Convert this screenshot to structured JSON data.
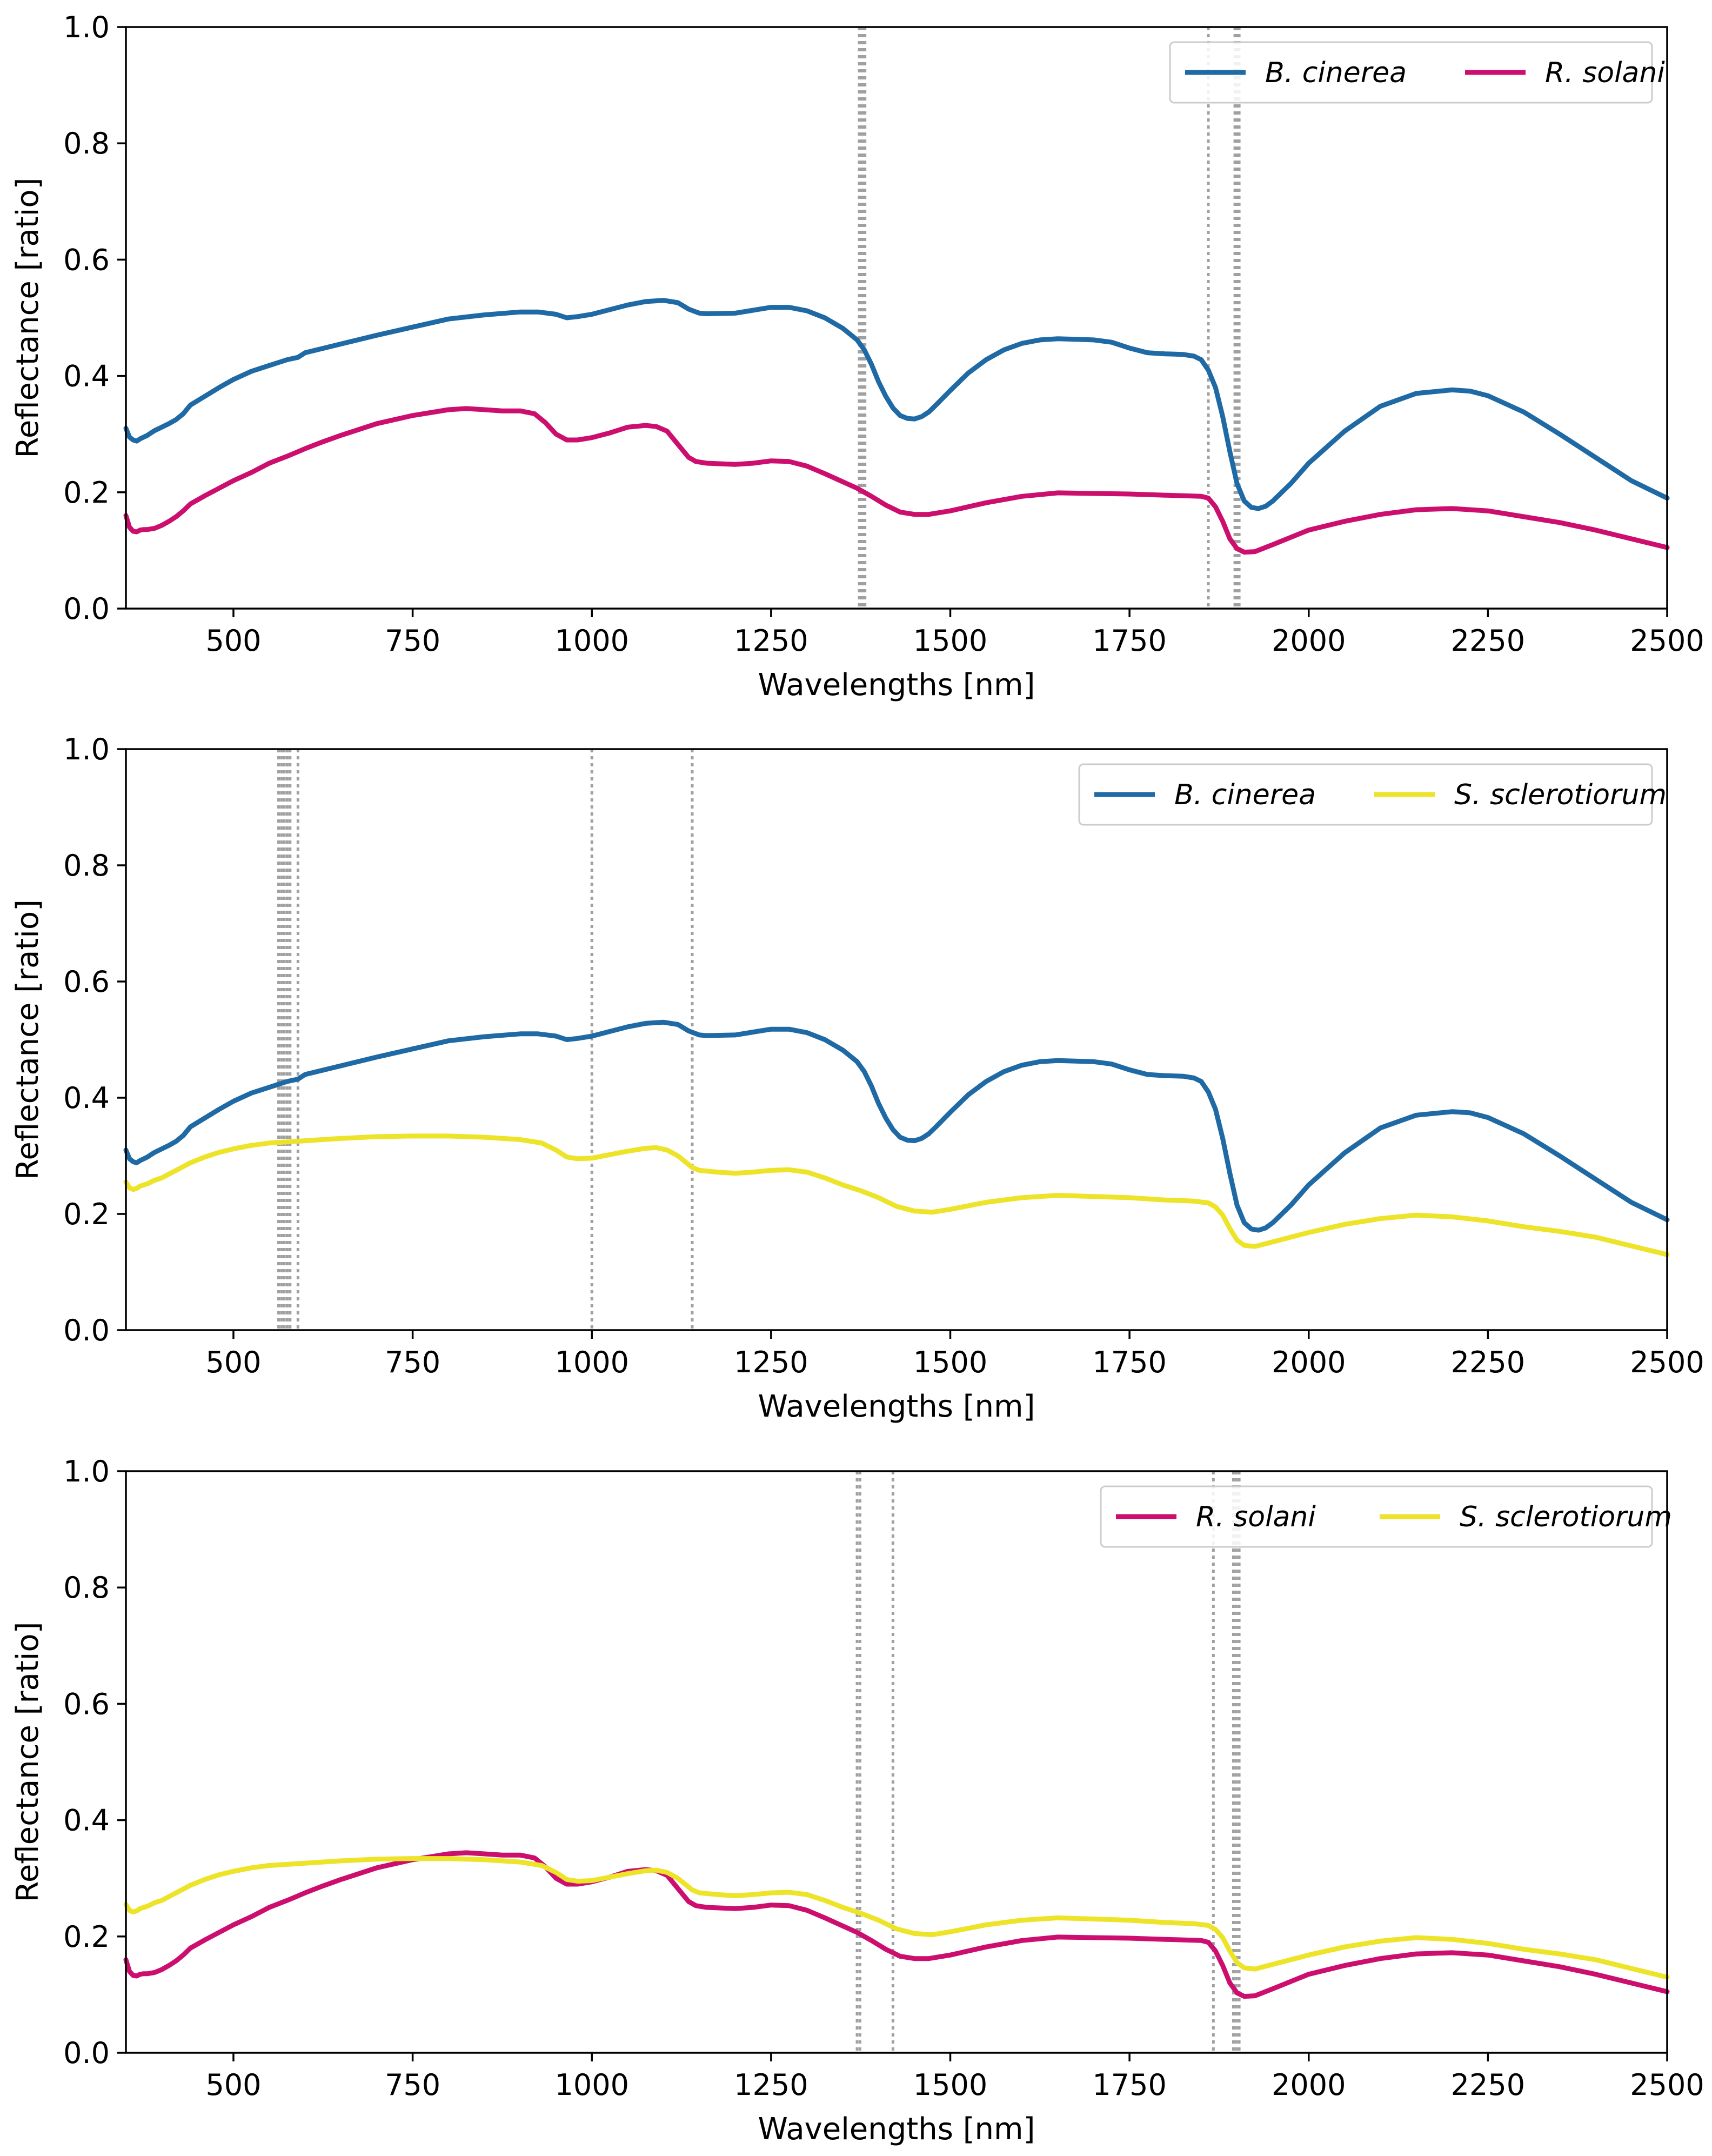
{
  "colors": {
    "B_cinerea": "#1f6aa5",
    "R_solani": "#cc0f6e",
    "S_sclerotiorum": "#ede328",
    "vline": "#a0a0a0"
  },
  "chart_data": [
    {
      "type": "line",
      "id": "panel1",
      "xlabel": "Wavelengths [nm]",
      "ylabel": "Reflectance [ratio]",
      "xlim": [
        350,
        2500
      ],
      "ylim": [
        0,
        1.0
      ],
      "xticks": [
        500,
        750,
        1000,
        1250,
        1500,
        1750,
        2000,
        2250,
        2500
      ],
      "yticks": [
        0.0,
        0.2,
        0.4,
        0.6,
        0.8,
        1.0
      ],
      "xtick_labels": [
        "500",
        "750",
        "1000",
        "1250",
        "1500",
        "1750",
        "2000",
        "2250",
        "2500"
      ],
      "ytick_labels": [
        "0.0",
        "0.2",
        "0.4",
        "0.6",
        "0.8",
        "1.0"
      ],
      "vlines": [
        1373,
        1375,
        1377,
        1379,
        1381,
        1860,
        1897,
        1899,
        1901,
        1903
      ],
      "legend_position": "top-right",
      "series": [
        {
          "key": "B_cinerea",
          "name": "B. cinerea"
        },
        {
          "key": "R_solani",
          "name": "R. solani"
        }
      ]
    },
    {
      "type": "line",
      "id": "panel2",
      "xlabel": "Wavelengths [nm]",
      "ylabel": "Reflectance [ratio]",
      "xlim": [
        350,
        2500
      ],
      "ylim": [
        0,
        1.0
      ],
      "xticks": [
        500,
        750,
        1000,
        1250,
        1500,
        1750,
        2000,
        2250,
        2500
      ],
      "yticks": [
        0.0,
        0.2,
        0.4,
        0.6,
        0.8,
        1.0
      ],
      "xtick_labels": [
        "500",
        "750",
        "1000",
        "1250",
        "1500",
        "1750",
        "2000",
        "2250",
        "2500"
      ],
      "ytick_labels": [
        "0.0",
        "0.2",
        "0.4",
        "0.6",
        "0.8",
        "1.0"
      ],
      "vlines": [
        563,
        567,
        571,
        575,
        579,
        590,
        1000,
        1140
      ],
      "legend_position": "top-right",
      "series": [
        {
          "key": "B_cinerea",
          "name": "B. cinerea"
        },
        {
          "key": "S_sclerotiorum",
          "name": "S. sclerotiorum"
        }
      ]
    },
    {
      "type": "line",
      "id": "panel3",
      "xlabel": "Wavelengths [nm]",
      "ylabel": "Reflectance [ratio]",
      "xlim": [
        350,
        2500
      ],
      "ylim": [
        0,
        1.0
      ],
      "xticks": [
        500,
        750,
        1000,
        1250,
        1500,
        1750,
        2000,
        2250,
        2500
      ],
      "yticks": [
        0.0,
        0.2,
        0.4,
        0.6,
        0.8,
        1.0
      ],
      "xtick_labels": [
        "500",
        "750",
        "1000",
        "1250",
        "1500",
        "1750",
        "2000",
        "2250",
        "2500"
      ],
      "ytick_labels": [
        "0.0",
        "0.2",
        "0.4",
        "0.6",
        "0.8",
        "1.0"
      ],
      "vlines": [
        1370,
        1374,
        1420,
        1867,
        1895,
        1899,
        1903
      ],
      "legend_position": "top-right",
      "series": [
        {
          "key": "R_solani",
          "name": "R. solani"
        },
        {
          "key": "S_sclerotiorum",
          "name": "S. sclerotiorum"
        }
      ]
    }
  ],
  "spectra": {
    "B_cinerea": {
      "name": "B. cinerea",
      "x": [
        350,
        355,
        360,
        365,
        370,
        375,
        380,
        385,
        390,
        400,
        410,
        420,
        430,
        440,
        460,
        480,
        500,
        525,
        550,
        575,
        590,
        600,
        650,
        700,
        750,
        800,
        850,
        900,
        925,
        950,
        965,
        980,
        1000,
        1025,
        1050,
        1075,
        1100,
        1120,
        1135,
        1150,
        1160,
        1200,
        1225,
        1250,
        1275,
        1300,
        1325,
        1350,
        1370,
        1380,
        1390,
        1400,
        1410,
        1420,
        1430,
        1440,
        1450,
        1460,
        1470,
        1480,
        1500,
        1525,
        1550,
        1575,
        1600,
        1625,
        1650,
        1675,
        1700,
        1725,
        1750,
        1775,
        1800,
        1825,
        1840,
        1850,
        1860,
        1870,
        1880,
        1890,
        1900,
        1910,
        1920,
        1930,
        1940,
        1950,
        1975,
        2000,
        2050,
        2100,
        2150,
        2200,
        2225,
        2250,
        2300,
        2350,
        2400,
        2450,
        2500
      ],
      "y": [
        0.31,
        0.295,
        0.29,
        0.288,
        0.292,
        0.295,
        0.298,
        0.302,
        0.306,
        0.312,
        0.318,
        0.325,
        0.335,
        0.35,
        0.365,
        0.38,
        0.394,
        0.408,
        0.418,
        0.428,
        0.432,
        0.44,
        0.455,
        0.47,
        0.484,
        0.498,
        0.505,
        0.51,
        0.51,
        0.506,
        0.5,
        0.502,
        0.506,
        0.514,
        0.522,
        0.528,
        0.53,
        0.526,
        0.515,
        0.508,
        0.507,
        0.508,
        0.513,
        0.518,
        0.518,
        0.512,
        0.5,
        0.482,
        0.462,
        0.445,
        0.42,
        0.39,
        0.365,
        0.345,
        0.332,
        0.327,
        0.326,
        0.33,
        0.338,
        0.35,
        0.375,
        0.405,
        0.428,
        0.445,
        0.456,
        0.462,
        0.464,
        0.463,
        0.462,
        0.458,
        0.448,
        0.44,
        0.438,
        0.437,
        0.434,
        0.428,
        0.41,
        0.38,
        0.33,
        0.27,
        0.215,
        0.185,
        0.174,
        0.172,
        0.176,
        0.185,
        0.215,
        0.25,
        0.305,
        0.348,
        0.37,
        0.376,
        0.374,
        0.366,
        0.338,
        0.3,
        0.26,
        0.22,
        0.19
      ]
    },
    "R_solani": {
      "name": "R. solani",
      "x": [
        350,
        355,
        360,
        365,
        370,
        375,
        380,
        390,
        400,
        410,
        420,
        430,
        440,
        460,
        480,
        500,
        525,
        550,
        575,
        600,
        625,
        650,
        700,
        750,
        800,
        825,
        850,
        875,
        900,
        920,
        935,
        950,
        965,
        980,
        1000,
        1025,
        1050,
        1075,
        1090,
        1105,
        1115,
        1125,
        1135,
        1145,
        1160,
        1200,
        1225,
        1250,
        1275,
        1300,
        1325,
        1350,
        1370,
        1390,
        1410,
        1430,
        1450,
        1470,
        1500,
        1550,
        1600,
        1650,
        1700,
        1750,
        1800,
        1850,
        1860,
        1870,
        1880,
        1890,
        1900,
        1910,
        1925,
        1950,
        2000,
        2050,
        2100,
        2150,
        2200,
        2250,
        2300,
        2350,
        2400,
        2450,
        2500
      ],
      "y": [
        0.16,
        0.14,
        0.133,
        0.132,
        0.135,
        0.136,
        0.136,
        0.138,
        0.143,
        0.15,
        0.158,
        0.168,
        0.18,
        0.194,
        0.207,
        0.22,
        0.234,
        0.25,
        0.262,
        0.275,
        0.287,
        0.298,
        0.318,
        0.332,
        0.342,
        0.344,
        0.342,
        0.34,
        0.34,
        0.335,
        0.32,
        0.3,
        0.29,
        0.29,
        0.294,
        0.302,
        0.312,
        0.315,
        0.313,
        0.305,
        0.29,
        0.275,
        0.26,
        0.253,
        0.25,
        0.248,
        0.25,
        0.254,
        0.253,
        0.245,
        0.232,
        0.218,
        0.207,
        0.193,
        0.178,
        0.166,
        0.162,
        0.162,
        0.168,
        0.182,
        0.193,
        0.199,
        0.198,
        0.197,
        0.195,
        0.193,
        0.19,
        0.175,
        0.15,
        0.12,
        0.103,
        0.097,
        0.098,
        0.11,
        0.135,
        0.15,
        0.162,
        0.17,
        0.172,
        0.168,
        0.158,
        0.148,
        0.135,
        0.12,
        0.105
      ]
    },
    "S_sclerotiorum": {
      "name": "S. sclerotiorum",
      "x": [
        350,
        355,
        360,
        365,
        370,
        380,
        390,
        400,
        420,
        440,
        460,
        480,
        500,
        525,
        550,
        575,
        600,
        650,
        700,
        750,
        800,
        850,
        900,
        930,
        950,
        965,
        980,
        1000,
        1025,
        1050,
        1075,
        1090,
        1105,
        1120,
        1130,
        1140,
        1150,
        1175,
        1200,
        1225,
        1250,
        1275,
        1300,
        1325,
        1350,
        1375,
        1400,
        1425,
        1450,
        1475,
        1500,
        1550,
        1600,
        1650,
        1700,
        1750,
        1800,
        1840,
        1860,
        1870,
        1880,
        1890,
        1900,
        1910,
        1925,
        1950,
        2000,
        2050,
        2100,
        2150,
        2200,
        2250,
        2300,
        2350,
        2400,
        2450,
        2500
      ],
      "y": [
        0.255,
        0.245,
        0.242,
        0.244,
        0.248,
        0.252,
        0.258,
        0.262,
        0.275,
        0.288,
        0.298,
        0.306,
        0.312,
        0.318,
        0.322,
        0.324,
        0.326,
        0.33,
        0.333,
        0.334,
        0.334,
        0.332,
        0.328,
        0.322,
        0.31,
        0.298,
        0.295,
        0.296,
        0.302,
        0.308,
        0.313,
        0.314,
        0.31,
        0.3,
        0.29,
        0.28,
        0.275,
        0.272,
        0.27,
        0.272,
        0.275,
        0.276,
        0.272,
        0.262,
        0.25,
        0.24,
        0.228,
        0.213,
        0.205,
        0.203,
        0.208,
        0.22,
        0.228,
        0.232,
        0.23,
        0.228,
        0.224,
        0.222,
        0.219,
        0.212,
        0.198,
        0.175,
        0.155,
        0.146,
        0.144,
        0.152,
        0.168,
        0.182,
        0.192,
        0.198,
        0.195,
        0.188,
        0.178,
        0.17,
        0.16,
        0.145,
        0.13
      ]
    }
  }
}
